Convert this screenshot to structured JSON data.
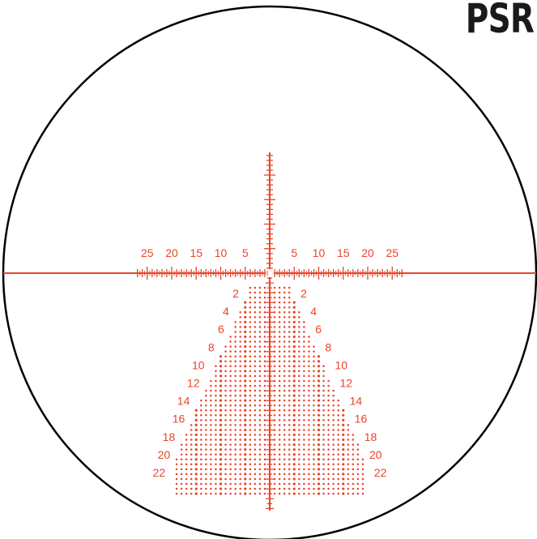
{
  "brand": {
    "text": "PSR"
  },
  "colors": {
    "reticle": "#e8452c",
    "ring": "#000000",
    "brand": "#1a1a1a"
  },
  "reticle": {
    "horizontal_labels_left": [
      "25",
      "20",
      "15",
      "10",
      "5"
    ],
    "horizontal_labels_right": [
      "5",
      "10",
      "15",
      "20",
      "25"
    ],
    "holdover_labels": [
      "2",
      "4",
      "6",
      "8",
      "10",
      "12",
      "14",
      "16",
      "18",
      "20",
      "22"
    ]
  }
}
